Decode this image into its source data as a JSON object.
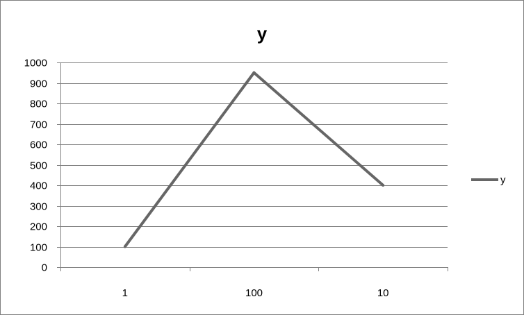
{
  "chart_data": {
    "type": "line",
    "title": "y",
    "xlabel": "",
    "ylabel": "",
    "categories": [
      "1",
      "100",
      "10"
    ],
    "series": [
      {
        "name": "y",
        "values": [
          100,
          950,
          400
        ],
        "color": "#666666"
      }
    ],
    "ylim": [
      0,
      1000
    ],
    "ytick_step": 100,
    "ytick_labels": [
      "0",
      "100",
      "200",
      "300",
      "400",
      "500",
      "600",
      "700",
      "800",
      "900",
      "1000"
    ],
    "grid": true,
    "legend_position": "right",
    "gridline_color": "#808080",
    "axis_color": "#808080"
  }
}
